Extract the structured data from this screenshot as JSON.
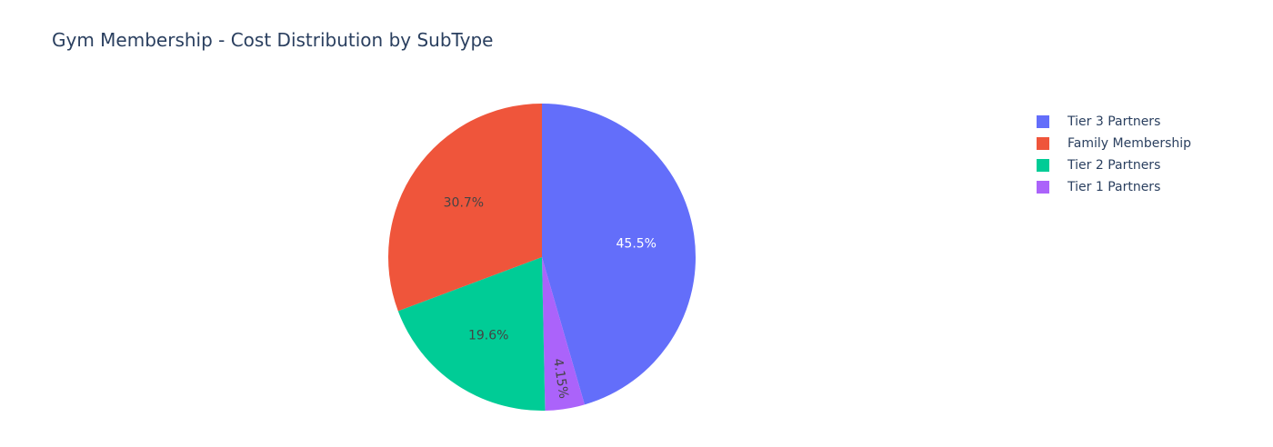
{
  "chart_data": {
    "type": "pie",
    "title": "Gym Membership - Cost Distribution by SubType",
    "slices": [
      {
        "name": "Tier 3 Partners",
        "value": 45.5,
        "label": "45.5%",
        "color": "#636efa",
        "label_color": "#ffffff"
      },
      {
        "name": "Tier 1 Partners",
        "value": 4.15,
        "label": "4.15%",
        "color": "#ab63fa",
        "label_color": "#444444"
      },
      {
        "name": "Tier 2 Partners",
        "value": 19.6,
        "label": "19.6%",
        "color": "#00cc96",
        "label_color": "#444444"
      },
      {
        "name": "Family Membership",
        "value": 30.7,
        "label": "30.7%",
        "color": "#ef553b",
        "label_color": "#444444"
      }
    ],
    "legend": {
      "placement": "top-right",
      "items": [
        {
          "name": "Tier 3 Partners",
          "color": "#636efa"
        },
        {
          "name": "Family Membership",
          "color": "#ef553b"
        },
        {
          "name": "Tier 2 Partners",
          "color": "#00cc96"
        },
        {
          "name": "Tier 1 Partners",
          "color": "#ab63fa"
        }
      ]
    },
    "direction": "clockwise",
    "start": "12 o'clock"
  }
}
